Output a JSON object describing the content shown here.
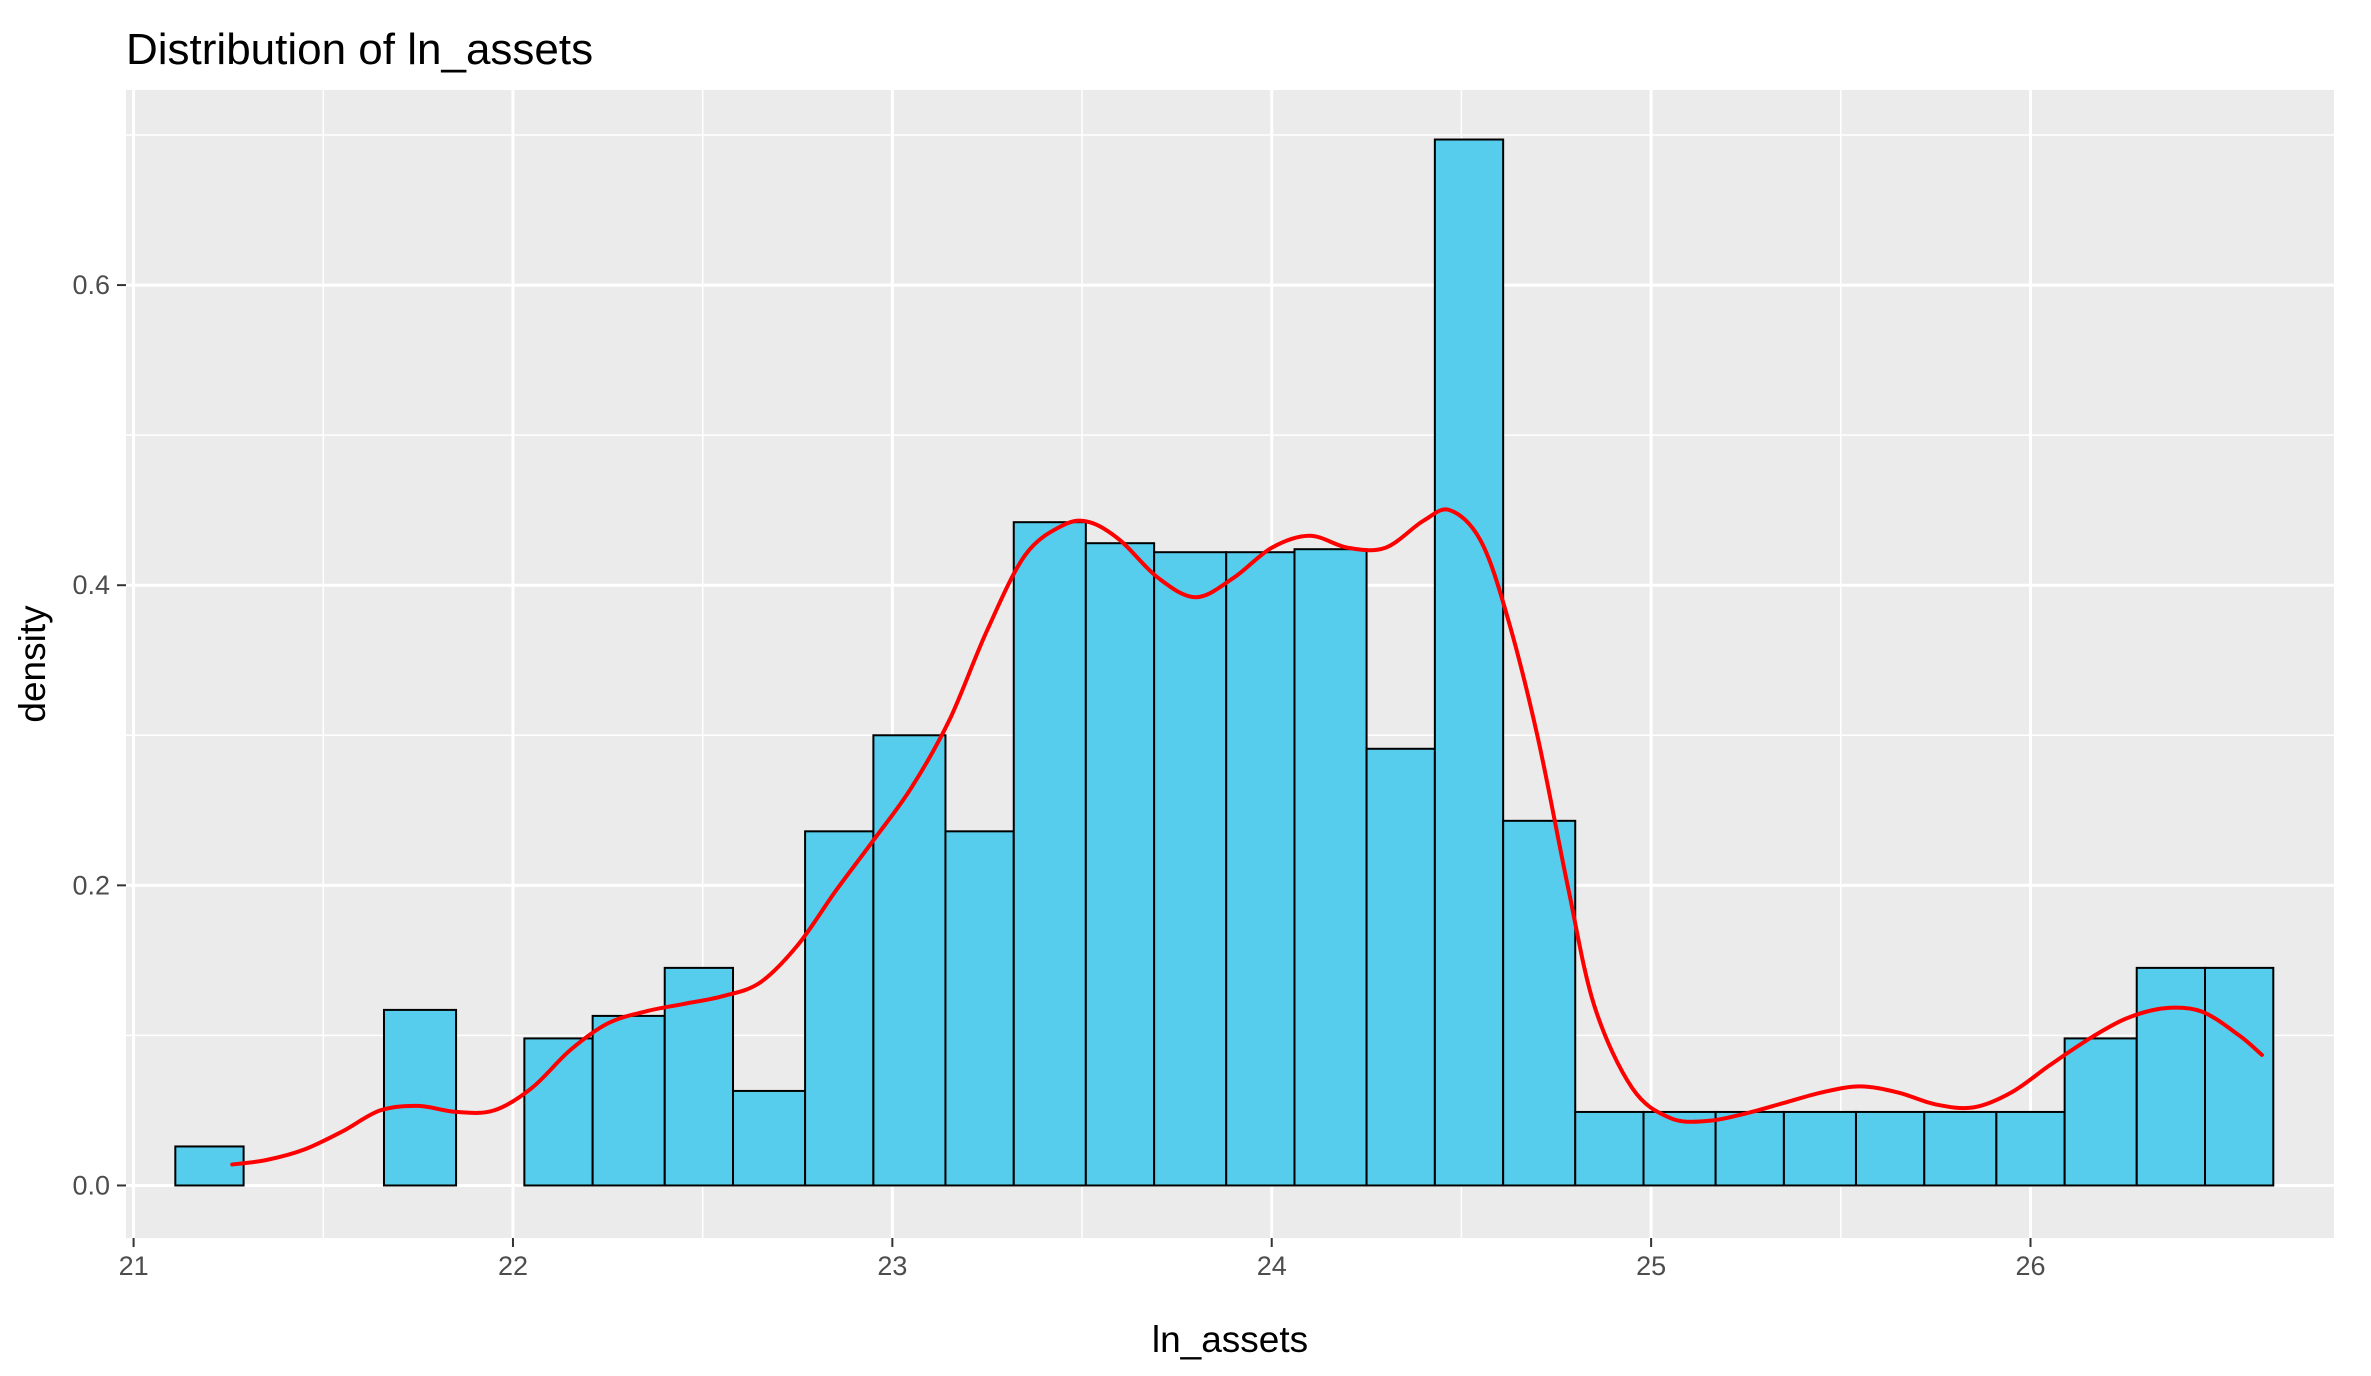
{
  "chart_data": {
    "type": "bar",
    "title": "Distribution of ln_assets",
    "xlabel": "ln_assets",
    "ylabel": "density",
    "xlim": [
      20.98,
      26.8
    ],
    "ylim": [
      -0.035,
      0.73
    ],
    "x_ticks": [
      21,
      22,
      23,
      24,
      25,
      26
    ],
    "y_ticks": [
      0.0,
      0.2,
      0.4,
      0.6
    ],
    "y_tick_labels": [
      "0.0",
      "0.2",
      "0.4",
      "0.6"
    ],
    "grid": true,
    "bars": {
      "fill": "#56CDEC",
      "edge": "#000000",
      "bins": [
        {
          "x0": 21.11,
          "x1": 21.29,
          "density": 0.026
        },
        {
          "x0": 21.29,
          "x1": 21.48,
          "density": 0.0
        },
        {
          "x0": 21.48,
          "x1": 21.66,
          "density": 0.0
        },
        {
          "x0": 21.66,
          "x1": 21.85,
          "density": 0.117
        },
        {
          "x0": 21.85,
          "x1": 22.03,
          "density": 0.0
        },
        {
          "x0": 22.03,
          "x1": 22.21,
          "density": 0.098
        },
        {
          "x0": 22.21,
          "x1": 22.4,
          "density": 0.113
        },
        {
          "x0": 22.4,
          "x1": 22.58,
          "density": 0.145
        },
        {
          "x0": 22.58,
          "x1": 22.77,
          "density": 0.063
        },
        {
          "x0": 22.77,
          "x1": 22.95,
          "density": 0.236
        },
        {
          "x0": 22.95,
          "x1": 23.14,
          "density": 0.3
        },
        {
          "x0": 23.14,
          "x1": 23.32,
          "density": 0.236
        },
        {
          "x0": 23.32,
          "x1": 23.51,
          "density": 0.442
        },
        {
          "x0": 23.51,
          "x1": 23.69,
          "density": 0.428
        },
        {
          "x0": 23.69,
          "x1": 23.88,
          "density": 0.422
        },
        {
          "x0": 23.88,
          "x1": 24.06,
          "density": 0.422
        },
        {
          "x0": 24.06,
          "x1": 24.25,
          "density": 0.424
        },
        {
          "x0": 24.25,
          "x1": 24.43,
          "density": 0.291
        },
        {
          "x0": 24.43,
          "x1": 24.61,
          "density": 0.697
        },
        {
          "x0": 24.61,
          "x1": 24.8,
          "density": 0.243
        },
        {
          "x0": 24.8,
          "x1": 24.98,
          "density": 0.049
        },
        {
          "x0": 24.98,
          "x1": 25.17,
          "density": 0.049
        },
        {
          "x0": 25.17,
          "x1": 25.35,
          "density": 0.049
        },
        {
          "x0": 25.35,
          "x1": 25.54,
          "density": 0.049
        },
        {
          "x0": 25.54,
          "x1": 25.72,
          "density": 0.049
        },
        {
          "x0": 25.72,
          "x1": 25.91,
          "density": 0.049
        },
        {
          "x0": 25.91,
          "x1": 26.09,
          "density": 0.049
        },
        {
          "x0": 26.09,
          "x1": 26.28,
          "density": 0.098
        },
        {
          "x0": 26.28,
          "x1": 26.46,
          "density": 0.145
        },
        {
          "x0": 26.46,
          "x1": 26.64,
          "density": 0.145
        }
      ]
    },
    "density_curve": {
      "color": "#FF0000",
      "x": [
        21.26,
        21.35,
        21.45,
        21.55,
        21.65,
        21.75,
        21.85,
        21.95,
        22.05,
        22.15,
        22.25,
        22.35,
        22.45,
        22.55,
        22.65,
        22.75,
        22.85,
        22.95,
        23.05,
        23.15,
        23.25,
        23.35,
        23.45,
        23.52,
        23.6,
        23.7,
        23.8,
        23.9,
        24.0,
        24.1,
        24.2,
        24.3,
        24.4,
        24.47,
        24.55,
        24.62,
        24.7,
        24.78,
        24.85,
        24.95,
        25.05,
        25.15,
        25.25,
        25.35,
        25.45,
        25.55,
        25.65,
        25.75,
        25.85,
        25.95,
        26.05,
        26.15,
        26.25,
        26.35,
        26.45,
        26.55,
        26.61
      ],
      "y": [
        0.014,
        0.017,
        0.024,
        0.036,
        0.05,
        0.053,
        0.049,
        0.05,
        0.065,
        0.09,
        0.108,
        0.116,
        0.121,
        0.126,
        0.135,
        0.16,
        0.196,
        0.23,
        0.265,
        0.31,
        0.37,
        0.42,
        0.44,
        0.442,
        0.43,
        0.405,
        0.392,
        0.405,
        0.425,
        0.433,
        0.425,
        0.425,
        0.443,
        0.45,
        0.43,
        0.38,
        0.3,
        0.2,
        0.12,
        0.065,
        0.045,
        0.043,
        0.048,
        0.055,
        0.062,
        0.066,
        0.062,
        0.054,
        0.052,
        0.062,
        0.08,
        0.097,
        0.111,
        0.118,
        0.116,
        0.1,
        0.087
      ]
    }
  }
}
